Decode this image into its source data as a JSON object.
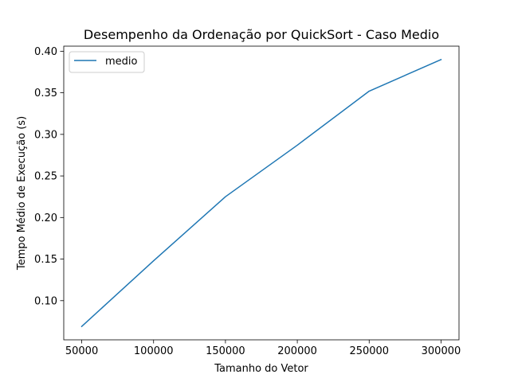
{
  "chart_data": {
    "type": "line",
    "title": "Desempenho da Ordenação por QuickSort - Caso Medio",
    "xlabel": "Tamanho do Vetor",
    "ylabel": "Tempo Médio de Execução (s)",
    "x": [
      50000,
      100000,
      150000,
      200000,
      250000,
      300000
    ],
    "series": [
      {
        "name": "medio",
        "color": "#1f77b4",
        "values": [
          0.069,
          0.148,
          0.225,
          0.287,
          0.352,
          0.39
        ]
      }
    ],
    "xticks": [
      50000,
      100000,
      150000,
      200000,
      250000,
      300000
    ],
    "xtick_labels": [
      "50000",
      "100000",
      "150000",
      "200000",
      "250000",
      "300000"
    ],
    "yticks": [
      0.1,
      0.15,
      0.2,
      0.25,
      0.3,
      0.35,
      0.4
    ],
    "ytick_labels": [
      "0.10",
      "0.15",
      "0.20",
      "0.25",
      "0.30",
      "0.35",
      "0.40"
    ],
    "xlim": [
      37500,
      312500
    ],
    "ylim": [
      0.0529,
      0.4061
    ],
    "grid": false,
    "legend_position": "upper-left"
  }
}
